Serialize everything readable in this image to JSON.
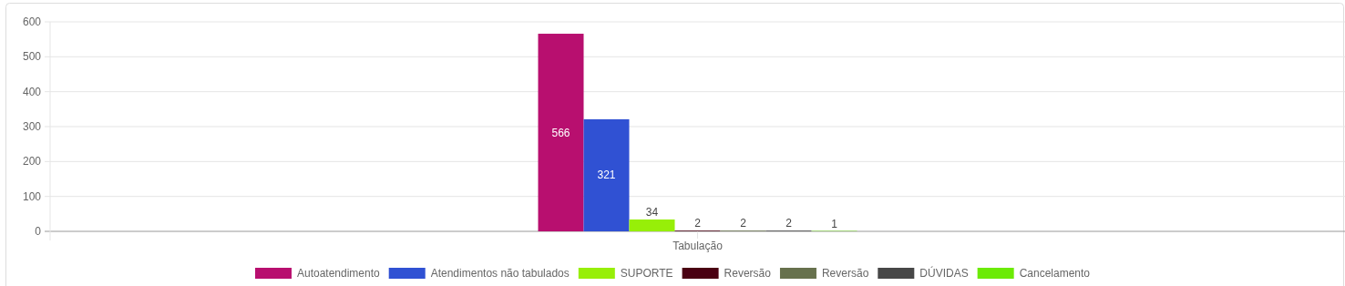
{
  "chart_data": {
    "type": "bar",
    "xlabel": "Tabulação",
    "categories": [
      null
    ],
    "series": [
      {
        "name": "Autoatendimento",
        "color": "#b80f6f",
        "values": [
          566
        ]
      },
      {
        "name": "Atendimentos não tabulados",
        "color": "#3051d3",
        "values": [
          321
        ]
      },
      {
        "name": "SUPORTE",
        "color": "#97ef08",
        "values": [
          34
        ]
      },
      {
        "name": "Reversão",
        "color": "#4a0012",
        "values": [
          2
        ]
      },
      {
        "name": "Reversão",
        "color": "#67714d",
        "values": [
          2
        ]
      },
      {
        "name": "DÚVIDAS",
        "color": "#474747",
        "values": [
          2
        ]
      },
      {
        "name": "Cancelamento",
        "color": "#6ceb05",
        "values": [
          1
        ]
      }
    ],
    "ylim": [
      0,
      600
    ],
    "yticks": [
      0,
      100,
      200,
      300,
      400,
      500,
      600
    ],
    "grid": "y",
    "legend": "bottom",
    "data_labels": true
  }
}
